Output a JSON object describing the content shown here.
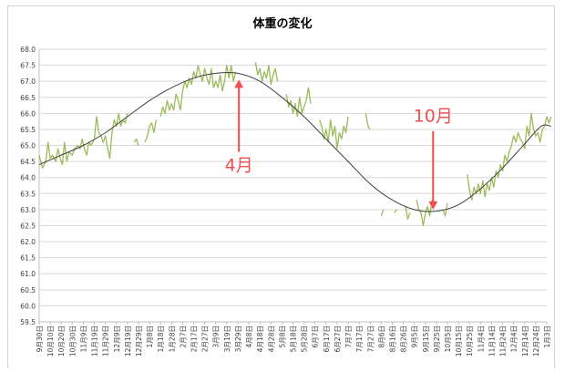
{
  "chart_data": {
    "type": "line",
    "title": "体重の変化",
    "xlabel": "",
    "ylabel": "",
    "ylim": [
      59.5,
      68.0
    ],
    "yticks": [
      "68.0",
      "67.5",
      "67.0",
      "66.5",
      "66.0",
      "65.5",
      "65.0",
      "64.5",
      "64.0",
      "63.5",
      "63.0",
      "62.5",
      "62.0",
      "61.5",
      "61.0",
      "60.5",
      "60.0",
      "59.5"
    ],
    "grid": true,
    "legend": "none",
    "categories": [
      "9月30日",
      "10月10日",
      "10月20日",
      "10月30日",
      "11月9日",
      "11月19日",
      "11月29日",
      "12月9日",
      "12月19日",
      "12月29日",
      "1月8日",
      "1月18日",
      "1月28日",
      "2月7日",
      "2月17日",
      "2月27日",
      "3月9日",
      "3月19日",
      "3月29日",
      "4月8日",
      "4月18日",
      "4月28日",
      "5月8日",
      "5月18日",
      "5月28日",
      "6月7日",
      "6月17日",
      "6月27日",
      "7月7日",
      "7月17日",
      "7月27日",
      "8月6日",
      "8月16日",
      "8月26日",
      "9月5日",
      "9月15日",
      "9月25日",
      "10月5日",
      "10月15日",
      "10月25日",
      "11月4日",
      "11月14日",
      "11月24日",
      "12月4日",
      "12月14日",
      "12月24日",
      "1月3日"
    ],
    "series": [
      {
        "kind": "measured",
        "color": "#9bbb59",
        "segments": [
          [
            [
              0,
              64.7
            ],
            [
              0.3,
              64.3
            ],
            [
              0.6,
              64.5
            ],
            [
              0.8,
              65.1
            ],
            [
              1.0,
              64.6
            ],
            [
              1.2,
              64.7
            ],
            [
              1.5,
              64.5
            ],
            [
              1.7,
              64.9
            ],
            [
              1.9,
              64.6
            ],
            [
              2.1,
              64.4
            ],
            [
              2.3,
              65.1
            ],
            [
              2.5,
              64.5
            ],
            [
              2.7,
              64.8
            ],
            [
              3.0,
              64.7
            ],
            [
              3.2,
              64.9
            ],
            [
              3.5,
              65.0
            ],
            [
              3.7,
              64.9
            ],
            [
              3.9,
              65.2
            ],
            [
              4.1,
              64.9
            ],
            [
              4.3,
              64.7
            ],
            [
              4.5,
              65.1
            ],
            [
              4.7,
              65.0
            ],
            [
              5.0,
              65.2
            ],
            [
              5.2,
              65.9
            ],
            [
              5.4,
              65.4
            ],
            [
              5.6,
              65.3
            ],
            [
              5.8,
              65.1
            ],
            [
              6.0,
              65.3
            ],
            [
              6.2,
              64.9
            ],
            [
              6.4,
              64.6
            ],
            [
              6.6,
              65.4
            ],
            [
              6.8,
              65.8
            ],
            [
              7.0,
              65.6
            ],
            [
              7.2,
              66.0
            ],
            [
              7.4,
              65.6
            ],
            [
              7.6,
              65.8
            ],
            [
              7.8,
              65.7
            ],
            [
              8.0,
              66.0
            ]
          ],
          [
            [
              8.6,
              65.1
            ],
            [
              8.8,
              65.2
            ],
            [
              9.0,
              65.0
            ]
          ],
          [
            [
              9.6,
              65.1
            ],
            [
              9.8,
              65.3
            ],
            [
              10.0,
              65.6
            ],
            [
              10.2,
              65.7
            ],
            [
              10.4,
              65.4
            ],
            [
              10.6,
              65.8
            ]
          ],
          [
            [
              11.0,
              65.9
            ],
            [
              11.2,
              66.2
            ],
            [
              11.4,
              66.0
            ],
            [
              11.6,
              66.4
            ],
            [
              11.8,
              66.1
            ],
            [
              12.0,
              66.3
            ],
            [
              12.2,
              66.1
            ],
            [
              12.4,
              66.6
            ],
            [
              12.6,
              66.4
            ],
            [
              12.8,
              66.1
            ],
            [
              13.0,
              66.7
            ],
            [
              13.2,
              67.0
            ],
            [
              13.4,
              66.8
            ],
            [
              13.6,
              67.1
            ],
            [
              13.8,
              66.9
            ],
            [
              14.0,
              67.3
            ],
            [
              14.2,
              67.1
            ],
            [
              14.4,
              67.5
            ],
            [
              14.6,
              67.2
            ],
            [
              14.8,
              67.0
            ],
            [
              15.0,
              67.4
            ],
            [
              15.2,
              67.1
            ],
            [
              15.4,
              66.9
            ],
            [
              15.6,
              67.4
            ],
            [
              15.8,
              66.8
            ],
            [
              16.0,
              67.0
            ],
            [
              16.2,
              66.8
            ],
            [
              16.4,
              67.2
            ],
            [
              16.6,
              66.7
            ],
            [
              16.8,
              67.0
            ],
            [
              17.0,
              67.5
            ],
            [
              17.2,
              67.1
            ],
            [
              17.4,
              67.5
            ],
            [
              17.6,
              67.0
            ],
            [
              17.8,
              67.3
            ]
          ],
          [
            [
              19.6,
              67.6
            ],
            [
              19.8,
              67.2
            ],
            [
              20.0,
              67.4
            ],
            [
              20.2,
              67.0
            ],
            [
              20.4,
              67.3
            ],
            [
              20.6,
              67.1
            ],
            [
              20.8,
              67.5
            ],
            [
              21.0,
              66.9
            ],
            [
              21.2,
              67.2
            ],
            [
              21.4,
              67.4
            ],
            [
              21.6,
              67.0
            ]
          ],
          [
            [
              22.4,
              66.6
            ],
            [
              22.6,
              66.2
            ],
            [
              22.8,
              66.4
            ],
            [
              23.0,
              66.0
            ],
            [
              23.2,
              66.3
            ],
            [
              23.4,
              65.9
            ],
            [
              23.6,
              66.5
            ],
            [
              23.8,
              66.0
            ],
            [
              24.0,
              66.2
            ],
            [
              24.2,
              66.4
            ],
            [
              24.4,
              66.8
            ],
            [
              24.6,
              66.3
            ]
          ],
          [
            [
              25.4,
              65.8
            ],
            [
              25.6,
              65.6
            ],
            [
              25.8,
              65.2
            ],
            [
              26.0,
              65.5
            ],
            [
              26.2,
              65.1
            ],
            [
              26.4,
              65.8
            ],
            [
              26.6,
              65.3
            ],
            [
              26.8,
              65.6
            ],
            [
              27.0,
              64.9
            ],
            [
              27.2,
              65.4
            ],
            [
              27.4,
              65.2
            ],
            [
              27.6,
              65.6
            ],
            [
              27.8,
              65.4
            ],
            [
              28.0,
              65.9
            ]
          ],
          [
            [
              29.6,
              66.0
            ],
            [
              29.8,
              65.6
            ],
            [
              30.0,
              65.5
            ]
          ],
          [
            [
              31.0,
              62.8
            ],
            [
              31.2,
              63.0
            ]
          ],
          [
            [
              32.2,
              62.9
            ],
            [
              32.4,
              63.0
            ]
          ],
          [
            [
              33.2,
              63.1
            ],
            [
              33.4,
              62.7
            ],
            [
              33.6,
              62.9
            ]
          ],
          [
            [
              34.2,
              63.3
            ],
            [
              34.4,
              63.0
            ],
            [
              34.6,
              62.9
            ],
            [
              34.8,
              62.5
            ],
            [
              35.0,
              62.9
            ],
            [
              35.2,
              63.1
            ],
            [
              35.4,
              62.8
            ],
            [
              35.6,
              63.3
            ]
          ],
          [
            [
              36.6,
              63.0
            ],
            [
              36.8,
              62.8
            ],
            [
              37.0,
              63.2
            ]
          ],
          [
            [
              38.8,
              64.1
            ],
            [
              39.0,
              63.6
            ],
            [
              39.2,
              63.3
            ],
            [
              39.4,
              63.7
            ],
            [
              39.6,
              63.5
            ],
            [
              39.8,
              63.8
            ],
            [
              40.0,
              63.5
            ],
            [
              40.2,
              63.9
            ],
            [
              40.4,
              63.4
            ],
            [
              40.6,
              63.8
            ],
            [
              40.8,
              63.6
            ],
            [
              41.0,
              64.0
            ],
            [
              41.2,
              63.7
            ],
            [
              41.4,
              64.2
            ],
            [
              41.6,
              64.0
            ],
            [
              41.8,
              64.4
            ],
            [
              42.0,
              64.2
            ],
            [
              42.2,
              64.7
            ],
            [
              42.4,
              64.5
            ],
            [
              42.6,
              64.8
            ],
            [
              42.8,
              65.0
            ],
            [
              43.0,
              65.3
            ],
            [
              43.2,
              65.1
            ],
            [
              43.4,
              65.4
            ],
            [
              43.6,
              65.2
            ],
            [
              43.8,
              65.1
            ],
            [
              44.0,
              64.9
            ],
            [
              44.2,
              65.6
            ],
            [
              44.4,
              65.3
            ],
            [
              44.6,
              66.0
            ],
            [
              44.8,
              65.5
            ],
            [
              45.0,
              65.3
            ],
            [
              45.2,
              65.4
            ],
            [
              45.4,
              65.1
            ],
            [
              45.6,
              65.5
            ],
            [
              45.8,
              65.6
            ],
            [
              46.0,
              65.9
            ],
            [
              46.2,
              65.7
            ],
            [
              46.4,
              65.9
            ]
          ]
        ]
      },
      {
        "kind": "trend",
        "color": "#404040",
        "points": [
          [
            0,
            64.4
          ],
          [
            2,
            64.7
          ],
          [
            4,
            65.0
          ],
          [
            6,
            65.4
          ],
          [
            8,
            65.9
          ],
          [
            10,
            66.4
          ],
          [
            12,
            66.8
          ],
          [
            14,
            67.1
          ],
          [
            16,
            67.25
          ],
          [
            18,
            67.25
          ],
          [
            20,
            67.0
          ],
          [
            22,
            66.5
          ],
          [
            24,
            65.9
          ],
          [
            26,
            65.2
          ],
          [
            28,
            64.5
          ],
          [
            30,
            63.8
          ],
          [
            32,
            63.3
          ],
          [
            34,
            63.0
          ],
          [
            36,
            62.95
          ],
          [
            38,
            63.15
          ],
          [
            40,
            63.65
          ],
          [
            42,
            64.3
          ],
          [
            44,
            65.05
          ],
          [
            45.5,
            65.6
          ],
          [
            46.4,
            65.6
          ]
        ]
      }
    ],
    "annotations": [
      {
        "text": "4月",
        "color": "#f04f4f",
        "arrow_x": 18.1,
        "arrow_tip_y": 67.05,
        "arrow_tail_y": 64.8
      },
      {
        "text": "10月",
        "color": "#f04f4f",
        "arrow_x": 35.7,
        "arrow_tip_y": 63.0,
        "arrow_tail_y": 65.45
      }
    ]
  }
}
